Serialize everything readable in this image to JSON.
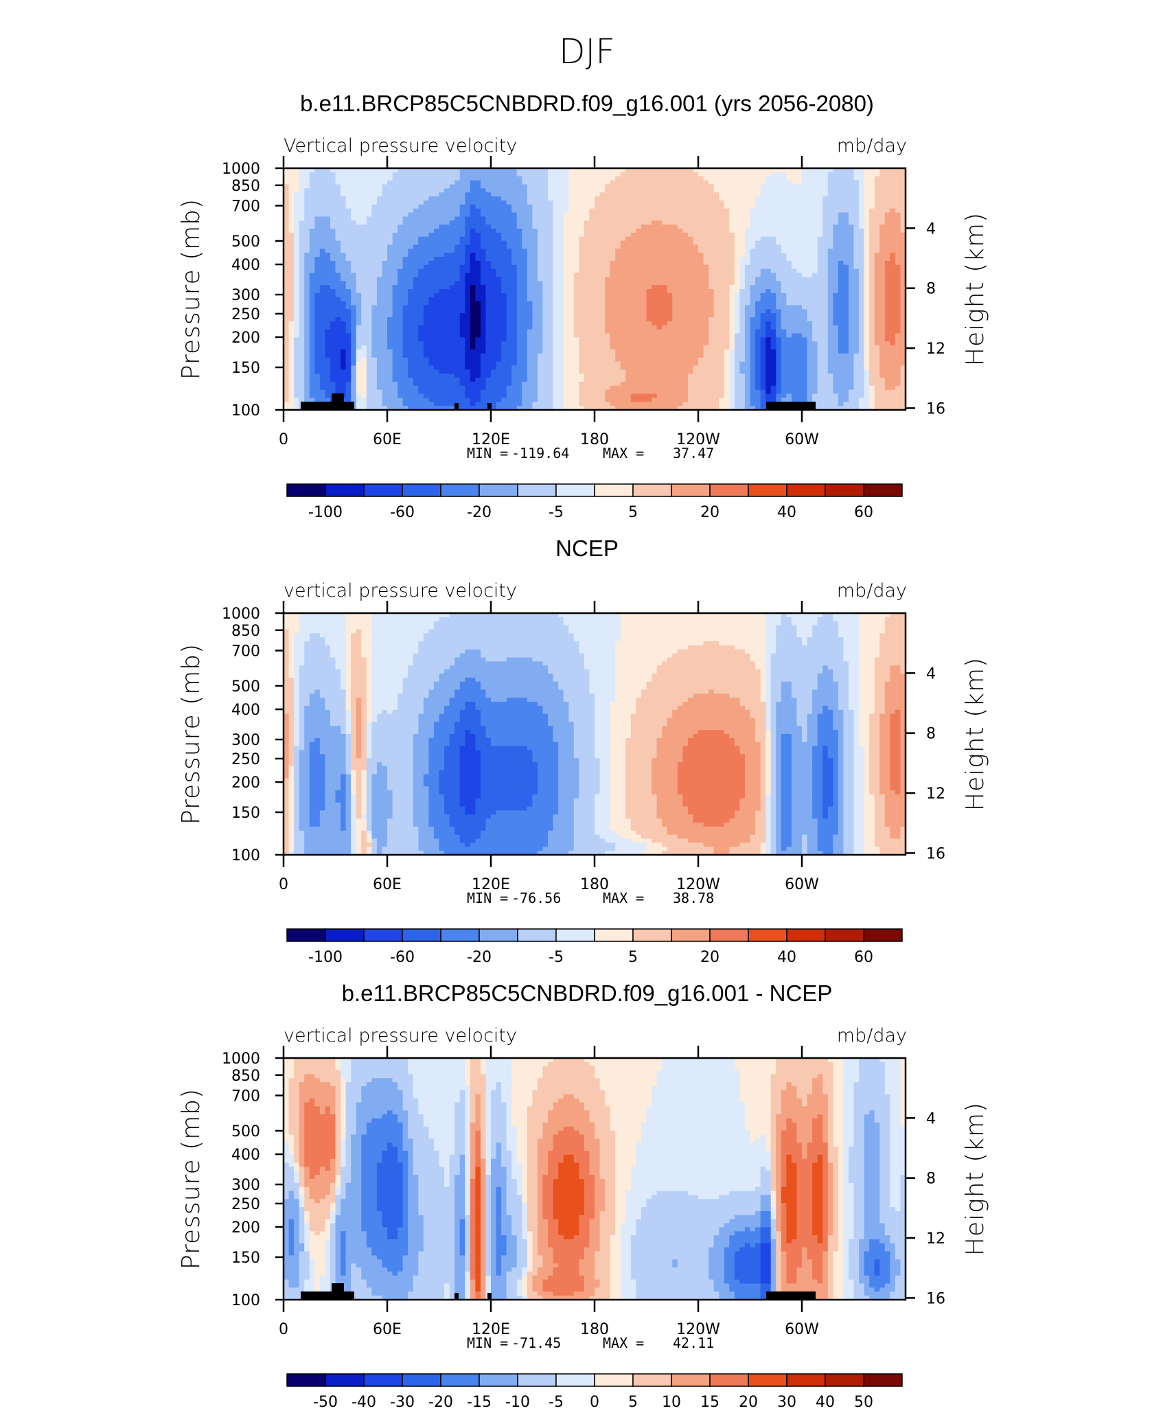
{
  "figure_title": "DJF",
  "palette": [
    "#08006e",
    "#0a1ec8",
    "#1e46e6",
    "#2c64ea",
    "#4a84ee",
    "#82acf2",
    "#b8d0f8",
    "#dceafc",
    "#fdecdc",
    "#f8c8b0",
    "#f4a282",
    "#f07a58",
    "#e8501c",
    "#d02e06",
    "#b01c02",
    "#7a0804"
  ],
  "chart_data": [
    {
      "type": "heatmap",
      "title": "b.e11.BRCP85C5CNBDRD.f09_g16.001 (yrs 2056-2080)",
      "left_label": "Vertical pressure velocity",
      "right_label": "mb/day",
      "ylabel": "Pressure (mb)",
      "y2label": "Height (km)",
      "x_ticks": [
        "0",
        "60E",
        "120E",
        "180",
        "120W",
        "60W"
      ],
      "y_ticks": [
        "100",
        "150",
        "200",
        "250",
        "300",
        "400",
        "500",
        "700",
        "850",
        "1000"
      ],
      "y2_ticks": [
        "16",
        "12",
        "8",
        "4"
      ],
      "min_label": "MIN =",
      "min_value": "-119.64",
      "max_label": "MAX =",
      "max_value": "37.47",
      "colorbar_labels": [
        "-100",
        "-60",
        "-20",
        "-5",
        "5",
        "20",
        "40",
        "60"
      ],
      "colorbar_label_index": [
        1,
        3,
        5,
        7,
        9,
        11,
        13,
        15
      ],
      "blobs": [
        {
          "lon": 22,
          "p": 480,
          "dx": 9,
          "dp": 380,
          "v": -4
        },
        {
          "lon": 36,
          "p": 650,
          "dx": 6,
          "dp": 320,
          "v": -4
        },
        {
          "lon": 44,
          "p": 700,
          "dx": 3,
          "dp": 200,
          "v": 3
        },
        {
          "lon": 85,
          "p": 480,
          "dx": 22,
          "dp": 390,
          "v": -4.5
        },
        {
          "lon": 125,
          "p": 400,
          "dx": 18,
          "dp": 420,
          "v": -4
        },
        {
          "lon": 110,
          "p": 360,
          "dx": 4,
          "dp": 300,
          "v": -1.8
        },
        {
          "lon": 217,
          "p": 370,
          "dx": 30,
          "dp": 280,
          "v": 2.6
        },
        {
          "lon": 205,
          "p": 900,
          "dx": 18,
          "dp": 80,
          "v": 1.4
        },
        {
          "lon": 278,
          "p": 600,
          "dx": 10,
          "dp": 360,
          "v": -4.5
        },
        {
          "lon": 282,
          "p": 700,
          "dx": 3,
          "dp": 260,
          "v": -2.5
        },
        {
          "lon": 300,
          "p": 700,
          "dx": 6,
          "dp": 320,
          "v": -3
        },
        {
          "lon": 324,
          "p": 380,
          "dx": 8,
          "dp": 300,
          "v": -3
        },
        {
          "lon": 352,
          "p": 350,
          "dx": 9,
          "dp": 260,
          "v": 3
        }
      ]
    },
    {
      "type": "heatmap",
      "title": "NCEP",
      "left_label": "vertical pressure velocity",
      "right_label": "mb/day",
      "ylabel": "Pressure (mb)",
      "y2label": "Height (km)",
      "x_ticks": [
        "0",
        "60E",
        "120E",
        "180",
        "120W",
        "60W"
      ],
      "y_ticks": [
        "100",
        "150",
        "200",
        "250",
        "300",
        "400",
        "500",
        "700",
        "850",
        "1000"
      ],
      "y2_ticks": [
        "16",
        "12",
        "8",
        "4"
      ],
      "min_label": "MIN =",
      "min_value": "-76.56",
      "max_label": "MAX =",
      "max_value": "38.78",
      "colorbar_labels": [
        "-100",
        "-60",
        "-20",
        "-5",
        "5",
        "20",
        "40",
        "60"
      ],
      "colorbar_label_index": [
        1,
        3,
        5,
        7,
        9,
        11,
        13,
        15
      ],
      "blobs": [
        {
          "lon": 18,
          "p": 500,
          "dx": 9,
          "dp": 380,
          "v": -3
        },
        {
          "lon": 37,
          "p": 600,
          "dx": 5,
          "dp": 360,
          "v": -3
        },
        {
          "lon": 42,
          "p": 420,
          "dx": 4,
          "dp": 300,
          "v": 3
        },
        {
          "lon": 48,
          "p": 900,
          "dx": 2,
          "dp": 80,
          "v": 2
        },
        {
          "lon": 55,
          "p": 650,
          "dx": 6,
          "dp": 320,
          "v": -2
        },
        {
          "lon": 98,
          "p": 500,
          "dx": 18,
          "dp": 390,
          "v": -3.5
        },
        {
          "lon": 142,
          "p": 480,
          "dx": 22,
          "dp": 410,
          "v": -3.5
        },
        {
          "lon": 108,
          "p": 380,
          "dx": 5,
          "dp": 250,
          "v": -1.2
        },
        {
          "lon": 248,
          "p": 480,
          "dx": 28,
          "dp": 320,
          "v": 3.2
        },
        {
          "lon": 290,
          "p": 520,
          "dx": 7,
          "dp": 430,
          "v": -4
        },
        {
          "lon": 314,
          "p": 500,
          "dx": 8,
          "dp": 400,
          "v": -4
        },
        {
          "lon": 355,
          "p": 380,
          "dx": 8,
          "dp": 280,
          "v": 3
        },
        {
          "lon": 215,
          "p": 930,
          "dx": 30,
          "dp": 60,
          "v": -0.8
        }
      ]
    },
    {
      "type": "heatmap",
      "title": "b.e11.BRCP85C5CNBDRD.f09_g16.001 - NCEP",
      "left_label": "vertical pressure velocity",
      "right_label": "mb/day",
      "ylabel": "Pressure (mb)",
      "y2label": "Height (km)",
      "x_ticks": [
        "0",
        "60E",
        "120E",
        "180",
        "120W",
        "60W"
      ],
      "y_ticks": [
        "100",
        "150",
        "200",
        "250",
        "300",
        "400",
        "500",
        "700",
        "850",
        "1000"
      ],
      "y2_ticks": [
        "16",
        "12",
        "8",
        "4"
      ],
      "min_label": "MIN =",
      "min_value": "-71.45",
      "max_label": "MAX =",
      "max_value": "42.11",
      "colorbar_labels": [
        "-50",
        "-40",
        "-30",
        "-20",
        "-15",
        "-10",
        "-5",
        "0",
        "5",
        "10",
        "15",
        "20",
        "30",
        "40",
        "50"
      ],
      "colorbar_label_index": [
        1,
        2,
        3,
        4,
        5,
        6,
        7,
        8,
        9,
        10,
        11,
        12,
        13,
        14,
        15
      ],
      "blobs": [
        {
          "lon": 15,
          "p": 220,
          "dx": 7,
          "dp": 110,
          "v": 3.5
        },
        {
          "lon": 28,
          "p": 220,
          "dx": 4,
          "dp": 100,
          "v": 2.5
        },
        {
          "lon": 6,
          "p": 500,
          "dx": 5,
          "dp": 250,
          "v": -3
        },
        {
          "lon": 33,
          "p": 650,
          "dx": 4,
          "dp": 300,
          "v": -2.5
        },
        {
          "lon": 50,
          "p": 320,
          "dx": 9,
          "dp": 250,
          "v": -3
        },
        {
          "lon": 65,
          "p": 320,
          "dx": 6,
          "dp": 220,
          "v": -2.5
        },
        {
          "lon": 75,
          "p": 550,
          "dx": 14,
          "dp": 400,
          "v": -1.5
        },
        {
          "lon": 103,
          "p": 550,
          "dx": 3,
          "dp": 430,
          "v": -2.5
        },
        {
          "lon": 112,
          "p": 500,
          "dx": 3,
          "dp": 430,
          "v": 4.5
        },
        {
          "lon": 124,
          "p": 550,
          "dx": 4,
          "dp": 430,
          "v": -3
        },
        {
          "lon": 135,
          "p": 650,
          "dx": 5,
          "dp": 350,
          "v": -1.8
        },
        {
          "lon": 165,
          "p": 380,
          "dx": 14,
          "dp": 260,
          "v": 4.2
        },
        {
          "lon": 225,
          "p": 700,
          "dx": 18,
          "dp": 330,
          "v": -1.5
        },
        {
          "lon": 268,
          "p": 720,
          "dx": 12,
          "dp": 250,
          "v": -4
        },
        {
          "lon": 280,
          "p": 650,
          "dx": 3,
          "dp": 350,
          "v": -3.5
        },
        {
          "lon": 293,
          "p": 420,
          "dx": 7,
          "dp": 350,
          "v": 4.2
        },
        {
          "lon": 310,
          "p": 380,
          "dx": 5,
          "dp": 320,
          "v": 3.8
        },
        {
          "lon": 340,
          "p": 280,
          "dx": 7,
          "dp": 200,
          "v": -2
        },
        {
          "lon": 345,
          "p": 750,
          "dx": 8,
          "dp": 180,
          "v": -3
        },
        {
          "lon": 155,
          "p": 880,
          "dx": 20,
          "dp": 80,
          "v": 1.5
        }
      ]
    }
  ]
}
